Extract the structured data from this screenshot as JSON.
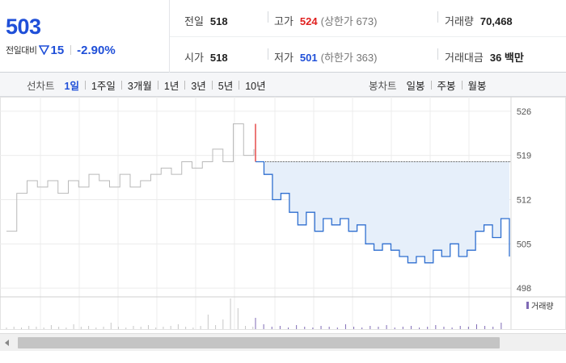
{
  "summary": {
    "price": "503",
    "change_label": "전일대비",
    "change_icon": "down-triangle-icon",
    "change_amount": "15",
    "change_rate": "-2.90%",
    "prev_close_label": "전일",
    "prev_close": "518",
    "open_label": "시가",
    "open": "518",
    "high_label": "고가",
    "high": "524",
    "upper_limit": "(상한가 673)",
    "low_label": "저가",
    "low": "501",
    "lower_limit": "(하한가 363)",
    "volume_label": "거래량",
    "volume": "70,468",
    "amount_label": "거래대금",
    "amount": "36 백만"
  },
  "colors": {
    "down": "#1f4fd8",
    "up": "#e0201f",
    "fill": "#e6effa",
    "line": "#2f6fd0",
    "volume": "#7f6ab5"
  },
  "tabs": {
    "line_title": "선차트",
    "line_items": [
      "1일",
      "1주일",
      "3개월",
      "1년",
      "3년",
      "5년",
      "10년"
    ],
    "line_active": "1일",
    "candle_title": "봉차트",
    "candle_items": [
      "일봉",
      "주봉",
      "월봉"
    ]
  },
  "chart_data": {
    "type": "line",
    "ylim": [
      497,
      527
    ],
    "y_ticks": [
      "526",
      "519",
      "512",
      "505",
      "498"
    ],
    "reference_line": 518,
    "previous_day": [
      507,
      513,
      515,
      514,
      515,
      513,
      515,
      514,
      516,
      515,
      514,
      516,
      514,
      515,
      516,
      517,
      516,
      518,
      517,
      518,
      520,
      518,
      524,
      519,
      520
    ],
    "today": [
      518,
      516,
      512,
      513,
      510,
      508,
      510,
      507,
      509,
      508,
      509,
      507,
      508,
      505,
      504,
      505,
      504,
      503,
      502,
      503,
      502,
      504,
      503,
      505,
      503,
      504,
      507,
      508,
      506,
      509,
      503
    ],
    "volume_label": "거래량"
  },
  "scrollbar": {
    "left_icon": "scroll-left-arrow-icon"
  }
}
